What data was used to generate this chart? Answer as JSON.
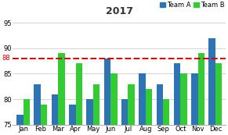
{
  "title": "2017",
  "months": [
    "Jan",
    "Feb",
    "Mar",
    "Apr",
    "May",
    "Jun",
    "Jul",
    "Aug",
    "Sep",
    "Oct",
    "Nov",
    "Dec"
  ],
  "team_a": [
    77,
    83,
    81,
    79,
    80,
    88,
    80,
    85,
    83,
    87,
    85,
    92
  ],
  "team_b": [
    80,
    79,
    89,
    87,
    83,
    85,
    83,
    82,
    80,
    85,
    89,
    87
  ],
  "hline_y": 88,
  "ylim": [
    75,
    96
  ],
  "yticks": [
    75,
    80,
    85,
    90,
    95
  ],
  "ytick_labels": [
    "75",
    "80",
    "85",
    "90",
    "95"
  ],
  "color_a": "#2E74B5",
  "color_b": "#33CC33",
  "hline_color": "#CC0000",
  "background_color": "#FFFFFF",
  "grid_color": "#CCCCCC",
  "title_fontsize": 9,
  "legend_fontsize": 6,
  "tick_fontsize": 6,
  "bar_width": 0.38,
  "hline_linewidth": 1.5
}
